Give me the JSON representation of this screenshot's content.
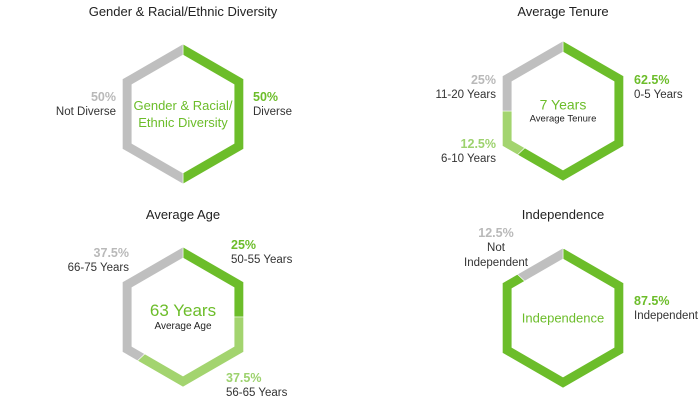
{
  "colors": {
    "green": "#6cbd2a",
    "gray": "#bfbfbf",
    "light_green": "#a3d46f"
  },
  "chart_data": [
    {
      "type": "pie",
      "title": "Gender & Racial/Ethnic Diversity",
      "center_lines": [
        "Gender & Racial/",
        "Ethnic Diversity"
      ],
      "center_sub": "",
      "slices": [
        {
          "pct": "50%",
          "value": 50,
          "label": "Diverse",
          "color": "green"
        },
        {
          "pct": "50%",
          "value": 50,
          "label": "Not Diverse",
          "color": "gray"
        }
      ]
    },
    {
      "type": "pie",
      "title": "Average Tenure",
      "center_lines": [
        "7 Years"
      ],
      "center_sub": "Average Tenure",
      "slices": [
        {
          "pct": "62.5%",
          "value": 62.5,
          "label": "0-5 Years",
          "color": "green"
        },
        {
          "pct": "12.5%",
          "value": 12.5,
          "label": "6-10 Years",
          "color": "light_green"
        },
        {
          "pct": "25%",
          "value": 25,
          "label": "11-20 Years",
          "color": "gray"
        }
      ]
    },
    {
      "type": "pie",
      "title": "Average Age",
      "center_lines": [
        "63 Years"
      ],
      "center_sub": "Average Age",
      "slices": [
        {
          "pct": "25%",
          "value": 25,
          "label": "50-55 Years",
          "color": "green"
        },
        {
          "pct": "37.5%",
          "value": 37.5,
          "label": "56-65 Years",
          "color": "light_green"
        },
        {
          "pct": "37.5%",
          "value": 37.5,
          "label": "66-75 Years",
          "color": "gray"
        }
      ]
    },
    {
      "type": "pie",
      "title": "Independence",
      "center_lines": [
        "Independence"
      ],
      "center_sub": "",
      "slices": [
        {
          "pct": "87.5%",
          "value": 87.5,
          "label": "Independent",
          "color": "green"
        },
        {
          "pct": "12.5%",
          "value": 12.5,
          "label": [
            "Not",
            "Independent"
          ],
          "color": "gray"
        }
      ]
    }
  ]
}
